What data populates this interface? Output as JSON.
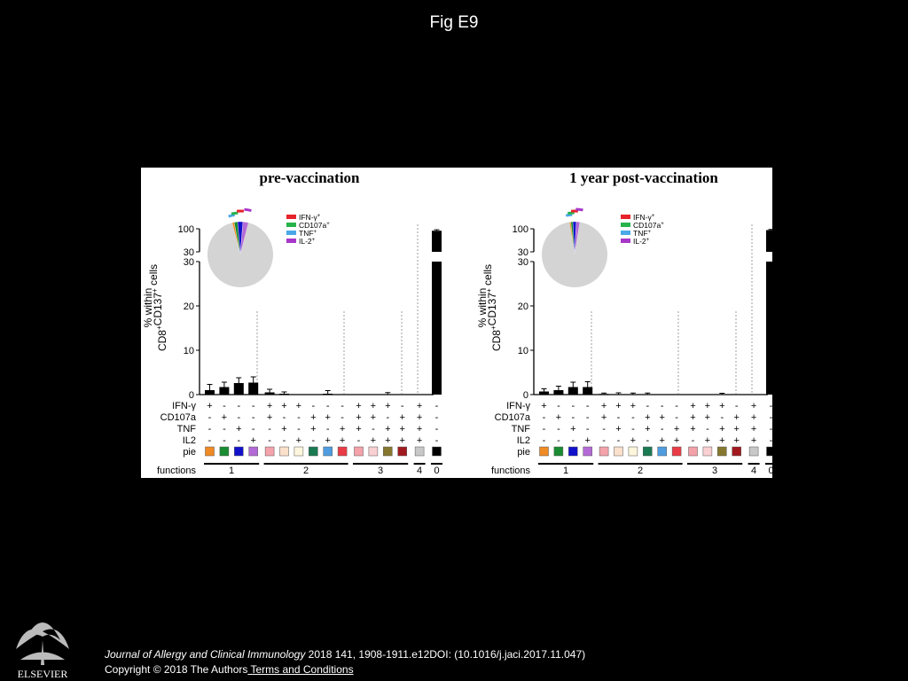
{
  "slide_title": "Fig E9",
  "footer": {
    "journal": "Journal of Allergy and Clinical Immunology",
    "citation_rest": " 2018 141, 1908-1911.e12DOI: (10.1016/j.jaci.2017.11.047)",
    "copyright": "Copyright © 2018 The Authors",
    "terms_link": " Terms and Conditions",
    "logo_text": "ELSEVIER"
  },
  "chart_data": {
    "type": "bar",
    "ylabel_line1": "% within",
    "ylabel_line2": "CD8",
    "ylabel_sup1": "+",
    "ylabel_mid": "CD137",
    "ylabel_sup2": "+",
    "ylabel_end": " cells",
    "y_ticks_lower": [
      "0",
      "10",
      "20",
      "30"
    ],
    "y_ticks_upper": [
      "30",
      "100"
    ],
    "ylim_lower": [
      0,
      30
    ],
    "ylim_upper": [
      30,
      100
    ],
    "legend": [
      {
        "label": "IFN-γ",
        "sup": "+",
        "color": "#e8222a"
      },
      {
        "label": "CD107a",
        "sup": "+",
        "color": "#27b34b"
      },
      {
        "label": "TNF",
        "sup": "+",
        "color": "#4aa8e8"
      },
      {
        "label": "IL-2",
        "sup": "+",
        "color": "#a737c9"
      }
    ],
    "row_labels": [
      "IFN-γ",
      "CD107a",
      "TNF",
      "IL2",
      "pie",
      "functions"
    ],
    "markers": {
      "IFN": [
        "+",
        "-",
        "-",
        "-",
        "+",
        "+",
        "+",
        "-",
        "-",
        "-",
        "+",
        "+",
        "+",
        "-",
        "+",
        "-"
      ],
      "CD107a": [
        "-",
        "+",
        "-",
        "-",
        "+",
        "-",
        "-",
        "+",
        "+",
        "-",
        "+",
        "+",
        "-",
        "+",
        "+",
        "-"
      ],
      "TNF": [
        "-",
        "-",
        "+",
        "-",
        "-",
        "+",
        "-",
        "+",
        "-",
        "+",
        "+",
        "-",
        "+",
        "+",
        "+",
        "-"
      ],
      "IL2": [
        "-",
        "-",
        "-",
        "+",
        "-",
        "-",
        "+",
        "-",
        "+",
        "+",
        "-",
        "+",
        "+",
        "+",
        "+",
        "-"
      ]
    },
    "pie_colors": [
      "#f08a24",
      "#1a8c32",
      "#1111cc",
      "#b36ad6",
      "#f4a3ab",
      "#fbe0cb",
      "#fdf6dd",
      "#1a7a52",
      "#4f9de0",
      "#ea3c46",
      "#f4a1a9",
      "#fad1d3",
      "#85782e",
      "#a11a1f",
      "#c8c8c8"
    ],
    "function_groups": [
      {
        "label": "1",
        "from": 0,
        "to": 3
      },
      {
        "label": "2",
        "from": 4,
        "to": 9
      },
      {
        "label": "3",
        "from": 10,
        "to": 13
      },
      {
        "label": "4",
        "from": 14,
        "to": 14
      },
      {
        "label": "0",
        "from": 15,
        "to": 15
      }
    ],
    "panels": [
      {
        "title": "pre-vaccination",
        "values": [
          1.0,
          1.7,
          2.6,
          2.7,
          0.5,
          0.2,
          0.05,
          0.05,
          0.2,
          0.05,
          0.05,
          0.05,
          0.05,
          0.05,
          0.05,
          94
        ],
        "errors": [
          1.3,
          1.1,
          1.2,
          1.3,
          0.7,
          0.4,
          0,
          0,
          0.7,
          0,
          0,
          0,
          0.4,
          0,
          0,
          3
        ],
        "pie": {
          "slices": [
            {
              "value": 1.0,
              "color": "#f08a24"
            },
            {
              "value": 1.7,
              "color": "#1a8c32"
            },
            {
              "value": 2.6,
              "color": "#1111cc"
            },
            {
              "value": 2.7,
              "color": "#b36ad6"
            },
            {
              "value": 92.0,
              "color": "#d4d4d4"
            }
          ]
        }
      },
      {
        "title": "1 year post-vaccination",
        "values": [
          0.7,
          1.0,
          1.7,
          1.7,
          0.15,
          0.1,
          0.05,
          0.05,
          0.05,
          0.05,
          0.05,
          0.05,
          0.1,
          0.05,
          0.05,
          96
        ],
        "errors": [
          0.6,
          0.9,
          1.1,
          1.2,
          0.2,
          0.3,
          0.3,
          0.3,
          0,
          0,
          0,
          0,
          0.2,
          0,
          0,
          2
        ],
        "pie": {
          "slices": [
            {
              "value": 0.7,
              "color": "#f08a24"
            },
            {
              "value": 1.0,
              "color": "#1a8c32"
            },
            {
              "value": 1.7,
              "color": "#1111cc"
            },
            {
              "value": 1.7,
              "color": "#b36ad6"
            },
            {
              "value": 94.9,
              "color": "#d4d4d4"
            }
          ]
        }
      }
    ]
  }
}
